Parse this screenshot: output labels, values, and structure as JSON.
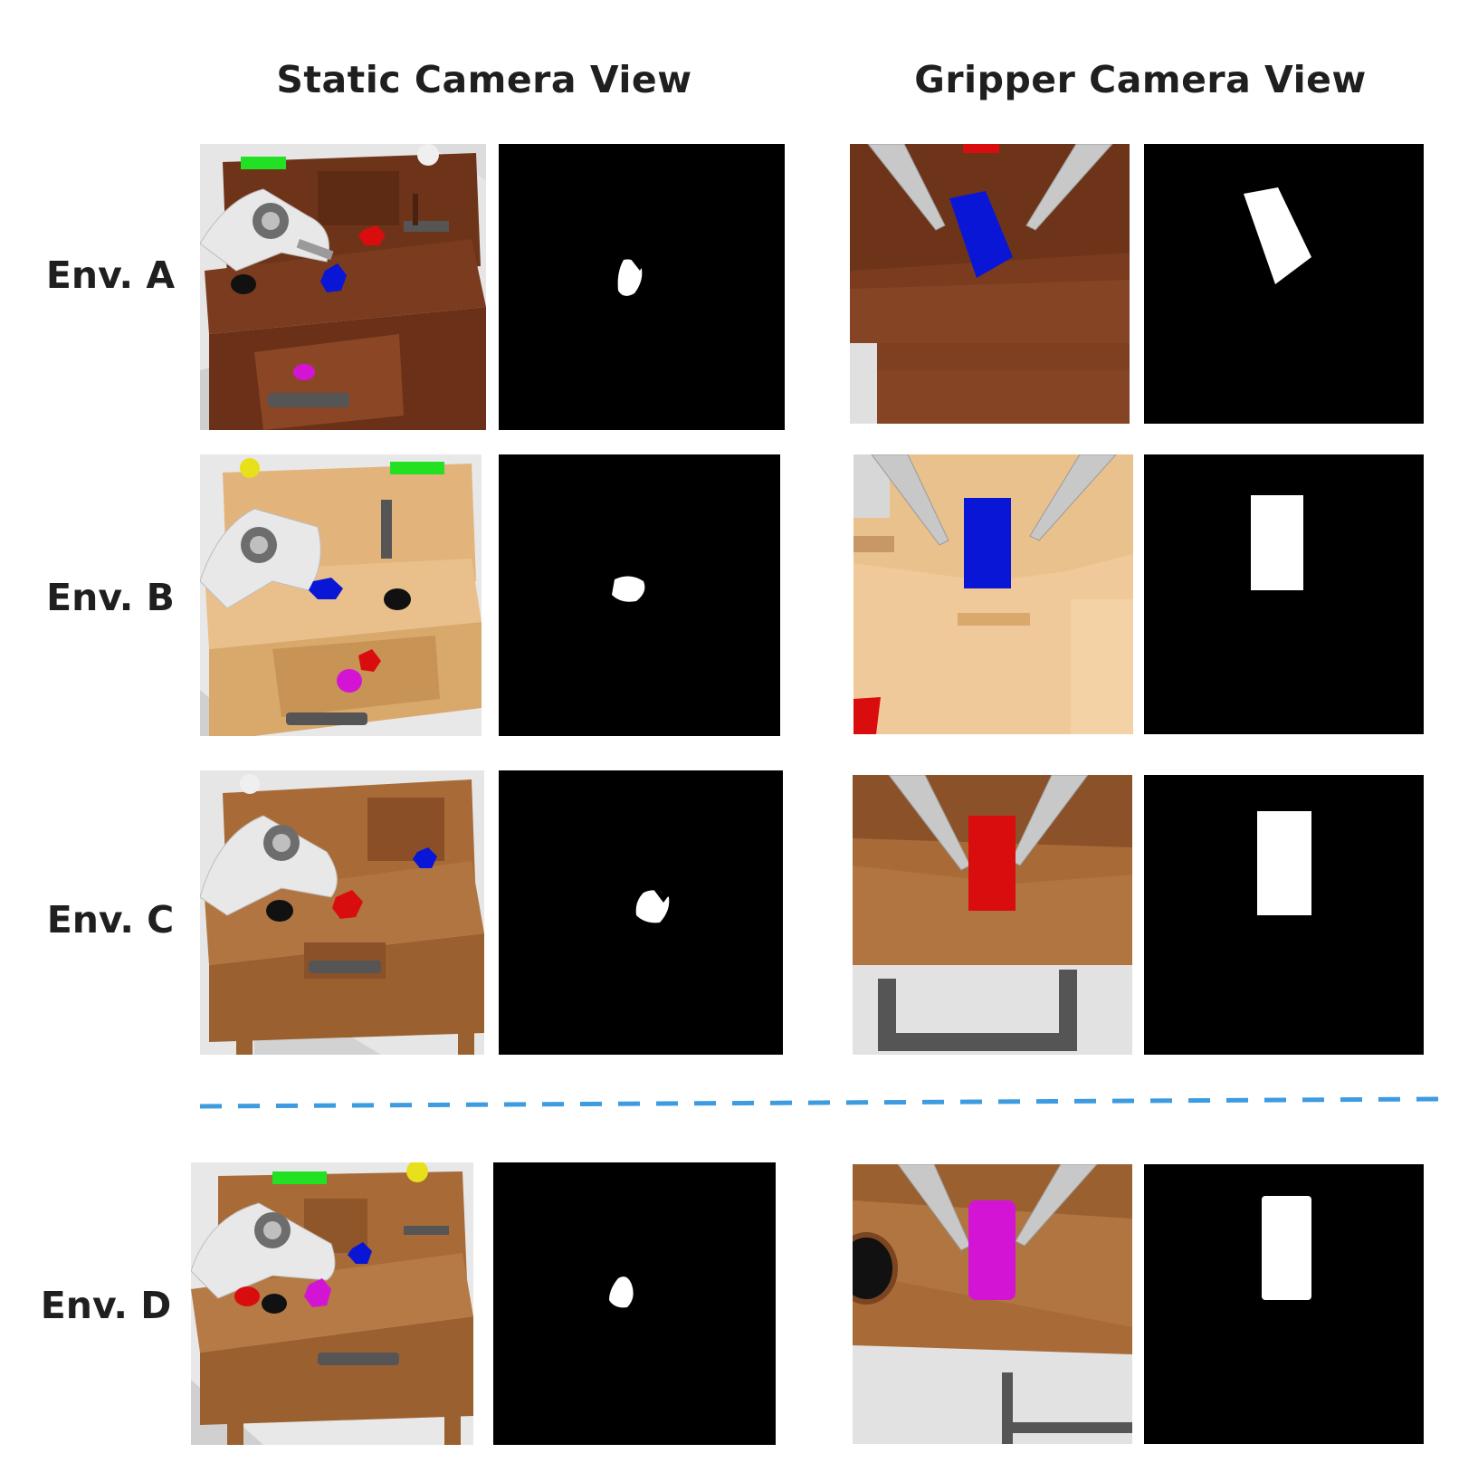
{
  "headers": {
    "static": "Static Camera View",
    "gripper": "Gripper Camera View"
  },
  "rows": [
    {
      "label": "Env. A"
    },
    {
      "label": "Env. B"
    },
    {
      "label": "Env. C"
    },
    {
      "label": "Env. D"
    }
  ],
  "colors": {
    "separator": "#3d9be0",
    "wood_dark": "#7a3b1e",
    "wood_light": "#e9c08b",
    "wood_mid": "#a86a36",
    "wood_mid2": "#9a6030",
    "block_blue": "#0a16d6",
    "block_red": "#d90d0d",
    "block_magenta": "#d414d4",
    "button_green": "#22e022",
    "ball_yellow": "#e8e01a"
  }
}
